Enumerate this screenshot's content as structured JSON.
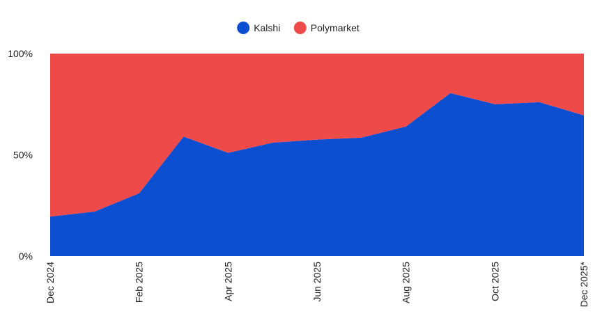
{
  "chart_data": {
    "type": "area",
    "stacked": true,
    "normalized": true,
    "x": [
      "Dec 2024",
      "Jan 2025",
      "Feb 2025",
      "Mar 2025",
      "Apr 2025",
      "May 2025",
      "Jun 2025",
      "Jul 2025",
      "Aug 2025",
      "Sep 2025",
      "Oct 2025",
      "Nov 2025",
      "Dec 2025*"
    ],
    "x_tick_labels": [
      "Dec 2024",
      "Feb 2025",
      "Apr 2025",
      "Jun 2025",
      "Aug 2025",
      "Oct 2025",
      "Dec 2025*"
    ],
    "series": [
      {
        "name": "Kalshi",
        "color": "#0b4fd0",
        "values": [
          19.5,
          22,
          31,
          59,
          51,
          56,
          57.5,
          58.5,
          64,
          80.5,
          75,
          76,
          69.5
        ]
      },
      {
        "name": "Polymarket",
        "color": "#ef4a4a",
        "values": [
          80.5,
          78,
          69,
          41,
          49,
          44,
          42.5,
          41.5,
          36,
          19.5,
          25,
          24,
          30.5
        ]
      }
    ],
    "y_ticks": [
      "0%",
      "50%",
      "100%"
    ],
    "ylim": [
      0,
      100
    ],
    "legend_position": "top-center",
    "grid": false
  }
}
